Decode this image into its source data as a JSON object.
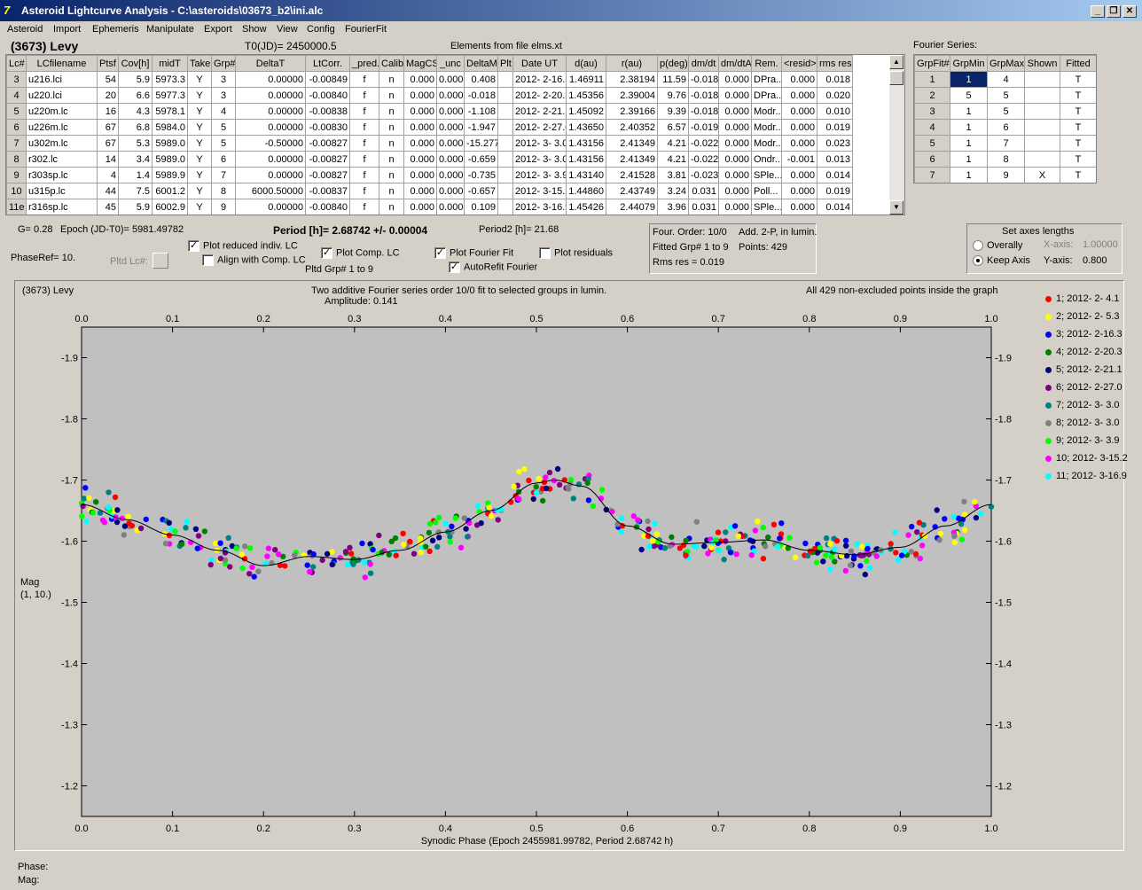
{
  "window": {
    "title": "Asteroid Lightcurve Analysis - C:\\asteroids\\03673_b2\\ini.alc"
  },
  "menu": [
    "Asteroid",
    "Import",
    "Ephemeris",
    "Manipulate",
    "Export",
    "Show",
    "View",
    "Config",
    "FourierFit"
  ],
  "header": {
    "asteroid": "(3673) Levy",
    "t0": "T0(JD)= 2450000.5",
    "elements": "Elements from file elms.xt",
    "fourier_series": "Fourier Series:"
  },
  "lc_table": {
    "columns": [
      "Lc#",
      "LCfilename",
      "Ptsf",
      "Cov[h]",
      "midT",
      "Take",
      "Grp#",
      "DeltaT",
      "LtCorr.",
      "_pred.",
      "Calib.",
      "MagCS",
      "_unc",
      "DeltaM",
      "Plt",
      "Date UT",
      "d(au)",
      "r(au)",
      "p(deg)",
      "dm/dt",
      "dm/dtA",
      "Rem.",
      "<resid>",
      "rms res"
    ],
    "rows": [
      [
        "3",
        "u216.lci",
        "54",
        "5.9",
        "5973.3",
        "Y",
        "3",
        "0.00000",
        "-0.00849",
        "f",
        "n",
        "0.000",
        "0.000",
        "0.408",
        "",
        "2012- 2-16.3",
        "1.46911",
        "2.38194",
        "11.59",
        "-0.018",
        "0.000",
        "DPra...",
        "0.000",
        "0.018"
      ],
      [
        "4",
        "u220.lci",
        "20",
        "6.6",
        "5977.3",
        "Y",
        "3",
        "0.00000",
        "-0.00840",
        "f",
        "n",
        "0.000",
        "0.000",
        "-0.018",
        "",
        "2012- 2-20.3",
        "1.45356",
        "2.39004",
        "9.76",
        "-0.018",
        "0.000",
        "DPra...",
        "0.000",
        "0.020"
      ],
      [
        "5",
        "u220m.lc",
        "16",
        "4.3",
        "5978.1",
        "Y",
        "4",
        "0.00000",
        "-0.00838",
        "f",
        "n",
        "0.000",
        "0.000",
        "-1.108",
        "",
        "2012- 2-21.1",
        "1.45092",
        "2.39166",
        "9.39",
        "-0.018",
        "0.000",
        "Modr...",
        "0.000",
        "0.010"
      ],
      [
        "6",
        "u226m.lc",
        "67",
        "6.8",
        "5984.0",
        "Y",
        "5",
        "0.00000",
        "-0.00830",
        "f",
        "n",
        "0.000",
        "0.000",
        "-1.947",
        "",
        "2012- 2-27.0",
        "1.43650",
        "2.40352",
        "6.57",
        "-0.019",
        "0.000",
        "Modr...",
        "0.000",
        "0.019"
      ],
      [
        "7",
        "u302m.lc",
        "67",
        "5.3",
        "5989.0",
        "Y",
        "5",
        "-0.50000",
        "-0.00827",
        "f",
        "n",
        "0.000",
        "0.000",
        "-15.277",
        "",
        "2012- 3- 3.0",
        "1.43156",
        "2.41349",
        "4.21",
        "-0.022",
        "0.000",
        "Modr...",
        "0.000",
        "0.023"
      ],
      [
        "8",
        "r302.lc",
        "14",
        "3.4",
        "5989.0",
        "Y",
        "6",
        "0.00000",
        "-0.00827",
        "f",
        "n",
        "0.000",
        "0.000",
        "-0.659",
        "",
        "2012- 3- 3.0",
        "1.43156",
        "2.41349",
        "4.21",
        "-0.022",
        "0.000",
        "Ondr...",
        "-0.001",
        "0.013"
      ],
      [
        "9",
        "r303sp.lc",
        "4",
        "1.4",
        "5989.9",
        "Y",
        "7",
        "0.00000",
        "-0.00827",
        "f",
        "n",
        "0.000",
        "0.000",
        "-0.735",
        "",
        "2012- 3- 3.9",
        "1.43140",
        "2.41528",
        "3.81",
        "-0.023",
        "0.000",
        "SPle...",
        "0.000",
        "0.014"
      ],
      [
        "10",
        "u315p.lc",
        "44",
        "7.5",
        "6001.2",
        "Y",
        "8",
        "6000.50000",
        "-0.00837",
        "f",
        "n",
        "0.000",
        "0.000",
        "-0.657",
        "",
        "2012- 3-15.2",
        "1.44860",
        "2.43749",
        "3.24",
        "0.031",
        "0.000",
        "Poll...",
        "0.000",
        "0.019"
      ],
      [
        "11e",
        "r316sp.lc",
        "45",
        "5.9",
        "6002.9",
        "Y",
        "9",
        "0.00000",
        "-0.00840",
        "f",
        "n",
        "0.000",
        "0.000",
        "0.109",
        "",
        "2012- 3-16.9",
        "1.45426",
        "2.44079",
        "3.96",
        "0.031",
        "0.000",
        "SPle...",
        "0.000",
        "0.014"
      ]
    ]
  },
  "fourier_table": {
    "columns": [
      "GrpFit#",
      "GrpMin",
      "GrpMax",
      "Shown",
      "Fitted"
    ],
    "rows": [
      [
        "1",
        "1",
        "4",
        "",
        "T"
      ],
      [
        "2",
        "5",
        "5",
        "",
        "T"
      ],
      [
        "3",
        "1",
        "5",
        "",
        "T"
      ],
      [
        "4",
        "1",
        "6",
        "",
        "T"
      ],
      [
        "5",
        "1",
        "7",
        "",
        "T"
      ],
      [
        "6",
        "1",
        "8",
        "",
        "T"
      ],
      [
        "7",
        "1",
        "9",
        "X",
        "T"
      ]
    ]
  },
  "controls": {
    "g": "G= 0.28",
    "epoch": "Epoch (JD-T0)= 5981.49782",
    "period": "Period [h]= 2.68742 +/- 0.00004",
    "period2": "Period2 [h]= 21.68",
    "phaseref": "PhaseRef= 10.",
    "pltd_lc": "Pltd Lc#:",
    "plot_reduced": "Plot reduced indiv. LC",
    "align": "Align with Comp. LC",
    "plot_comp": "Plot Comp. LC",
    "pltd_grp": "Pltd Grp#  1   to   9",
    "plot_fourier": "Plot Fourier Fit",
    "autorefit": "AutoRefit Fourier",
    "plot_resid": "Plot residuals",
    "four_order": "Four. Order: 10/0",
    "add": "Add. 2-P, in lumin.",
    "fitted_grp": "Fitted Grp# 1 to 9",
    "points": "Points: 429",
    "rms": "Rms res    = 0.019",
    "axes_title": "Set axes lengths",
    "overally": "Overally",
    "keep_axis": "Keep Axis",
    "x_axis_lbl": "X-axis:",
    "x_axis_val": "1.00000",
    "y_axis_lbl": "Y-axis:",
    "y_axis_val": "0.800"
  },
  "plot": {
    "name": "(3673) Levy",
    "desc": "Two additive Fourier series order 10/0 fit to selected groups in lumin.",
    "amplitude": "Amplitude: 0.141",
    "points_note": "All 429 non-excluded points inside the graph",
    "ylabel1": "Mag",
    "ylabel2": "(1, 10.)"
  },
  "status": {
    "phase": "Phase:",
    "mag": "Mag:"
  },
  "chart_data": {
    "type": "scatter",
    "xlabel": "Synodic Phase (Epoch 2455981.99782, Period 2.68742 h)",
    "ylabel": "Mag",
    "xlim": [
      0,
      1
    ],
    "ylim": [
      -1.95,
      -1.15
    ],
    "y_inverted": true,
    "x_ticks": [
      "0.0",
      "0.1",
      "0.2",
      "0.3",
      "0.4",
      "0.5",
      "0.6",
      "0.7",
      "0.8",
      "0.9",
      "1.0"
    ],
    "y_ticks": [
      "-1.9",
      "-1.8",
      "-1.7",
      "-1.6",
      "-1.5",
      "-1.4",
      "-1.3",
      "-1.2"
    ],
    "legend_position": "right",
    "series": [
      {
        "name": "1; 2012- 2- 4.1",
        "color": "#ff0000"
      },
      {
        "name": "2; 2012- 2- 5.3",
        "color": "#ffff00"
      },
      {
        "name": "3; 2012- 2-16.3",
        "color": "#0000ff"
      },
      {
        "name": "4; 2012- 2-20.3",
        "color": "#008000"
      },
      {
        "name": "5; 2012- 2-21.1",
        "color": "#000080"
      },
      {
        "name": "6; 2012- 2-27.0",
        "color": "#800080"
      },
      {
        "name": "7; 2012- 3- 3.0",
        "color": "#008080"
      },
      {
        "name": "8; 2012- 3- 3.0",
        "color": "#808080"
      },
      {
        "name": "9; 2012- 3- 3.9",
        "color": "#00ff00"
      },
      {
        "name": "10; 2012- 3-15.2",
        "color": "#ff00ff"
      },
      {
        "name": "11; 2012- 3-16.9",
        "color": "#00ffff"
      }
    ],
    "fit_curve": {
      "x": [
        0,
        0.05,
        0.1,
        0.15,
        0.2,
        0.25,
        0.3,
        0.35,
        0.4,
        0.45,
        0.5,
        0.52,
        0.55,
        0.6,
        0.65,
        0.7,
        0.75,
        0.8,
        0.85,
        0.9,
        0.95,
        1.0
      ],
      "y": [
        -1.66,
        -1.635,
        -1.61,
        -1.585,
        -1.56,
        -1.575,
        -1.57,
        -1.585,
        -1.615,
        -1.65,
        -1.695,
        -1.7,
        -1.69,
        -1.625,
        -1.595,
        -1.598,
        -1.602,
        -1.585,
        -1.578,
        -1.59,
        -1.625,
        -1.66
      ]
    }
  }
}
